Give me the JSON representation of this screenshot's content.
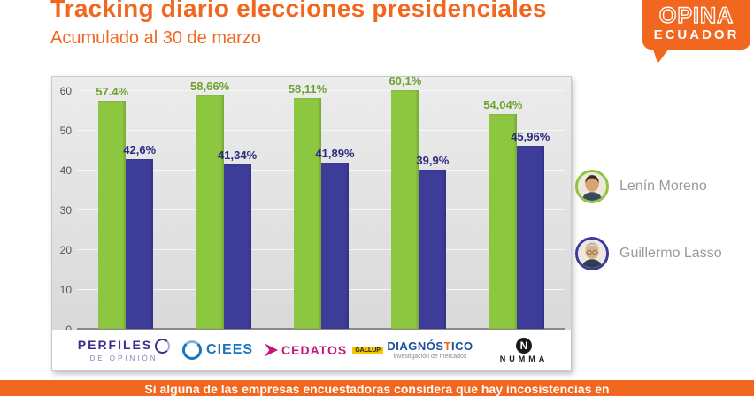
{
  "header": {
    "title": "Tracking diario elecciones presidenciales",
    "subtitle": "Acumulado al 30 de marzo"
  },
  "brand": {
    "line1": "OPINA",
    "line2": "ECUADOR"
  },
  "chart_data": {
    "type": "bar",
    "title": "Tracking diario elecciones presidenciales",
    "subtitle": "Acumulado al 30 de marzo",
    "categories": [
      "Perfiles de Opinión",
      "CIEES",
      "CEDATOS",
      "Diagnóstico",
      "NUMMA"
    ],
    "ylim": [
      0,
      60
    ],
    "yticks": [
      0,
      10,
      20,
      30,
      40,
      50,
      60
    ],
    "grid": true,
    "legend_position": "right",
    "series": [
      {
        "name": "Lenín Moreno",
        "color": "#8dc63f",
        "label_color": "#6fa12f",
        "values": [
          57.4,
          58.66,
          58.11,
          60.1,
          54.04
        ],
        "labels": [
          "57.4%",
          "58,66%",
          "58,11%",
          "60,1%",
          "54,04%"
        ]
      },
      {
        "name": "Guillermo Lasso",
        "color": "#3d3c98",
        "label_color": "#2c2b7e",
        "values": [
          42.6,
          41.34,
          41.89,
          39.9,
          45.96
        ],
        "labels": [
          "42,6%",
          "41,34%",
          "41,89%",
          "39,9%",
          "45,96%"
        ]
      }
    ]
  },
  "pollsters": [
    {
      "name": "PERFILES",
      "sub": "DE OPINIÓN"
    },
    {
      "name": "CIEES",
      "sub": ""
    },
    {
      "name": "CEDATOS",
      "sub": "GALLUP"
    },
    {
      "name_pre": "DIAGNÓS",
      "name_accent": "T",
      "name_post": "ICO",
      "sub": "investigación de mercados"
    },
    {
      "name": "NUMMA",
      "initial": "N"
    }
  ],
  "footer": {
    "text": "Si alguna de las empresas encuestadoras considera que hay incosistencias en"
  },
  "colors": {
    "accent_orange": "#f2671f",
    "bar_green": "#8dc63f",
    "bar_blue": "#3d3c98",
    "panel_gray": "#e0e0e0"
  }
}
